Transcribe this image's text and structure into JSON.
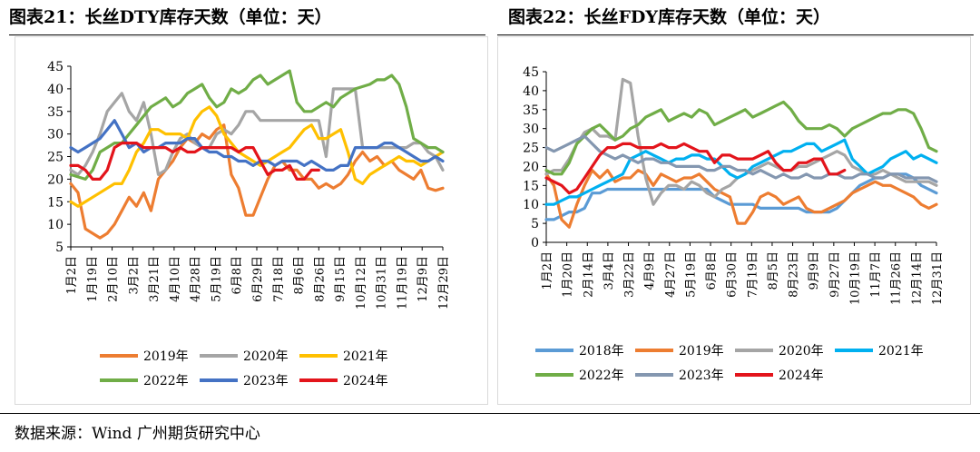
{
  "charts": [
    {
      "title": "图表21：长丝DTY库存天数（单位：天）",
      "chart_data": {
        "type": "line",
        "title": "图表21：长丝DTY库存天数（单位：天）",
        "ylim": [
          5,
          45
        ],
        "yticks": [
          5,
          10,
          15,
          20,
          25,
          30,
          35,
          40,
          45
        ],
        "x_labels": [
          "1月2日",
          "1月19日",
          "2月10日",
          "3月2日",
          "3月21日",
          "4月10日",
          "4月28日",
          "5月19日",
          "6月8日",
          "6月29日",
          "7月18日",
          "8月6日",
          "8月26日",
          "9月15日",
          "10月12日",
          "10月31日",
          "11月19日",
          "12月9日",
          "12月29日"
        ],
        "n_points": 52,
        "legend": "bottom",
        "series": [
          {
            "name": "2019年",
            "color": "#ED7D31",
            "values": [
              19,
              17,
              9,
              8,
              7,
              8,
              10,
              13,
              16,
              14,
              17,
              13,
              20,
              22,
              24,
              27,
              29,
              28,
              30,
              29,
              31,
              32,
              21,
              18,
              12,
              12,
              16,
              20,
              23,
              24,
              22,
              22,
              20,
              20,
              18,
              19,
              18,
              19,
              21,
              24,
              26,
              24,
              25,
              23,
              24,
              22,
              21,
              20,
              22,
              18,
              17.5,
              18
            ]
          },
          {
            "name": "2020年",
            "color": "#A5A5A5",
            "values": [
              22,
              21,
              23,
              26,
              30,
              35,
              37,
              39,
              35,
              33,
              37,
              30,
              21,
              22,
              26,
              29,
              30,
              28,
              27,
              27,
              30,
              31,
              30,
              32,
              35,
              35,
              33,
              33,
              33,
              33,
              33,
              33,
              33,
              33,
              33,
              25,
              40,
              40,
              40,
              40,
              27,
              27,
              27,
              27,
              27,
              27,
              27,
              28,
              28,
              26,
              25,
              22
            ]
          },
          {
            "name": "2021年",
            "color": "#FFC000",
            "values": [
              15,
              14,
              15,
              16,
              17,
              18,
              19,
              19,
              22,
              26,
              28,
              31,
              31,
              30,
              30,
              30,
              29,
              33,
              35,
              36,
              34,
              30,
              28,
              26,
              25,
              24,
              23,
              24,
              25,
              26,
              27,
              29,
              31,
              32,
              29,
              29,
              30,
              31,
              26,
              20,
              19,
              21,
              22,
              23,
              24,
              25,
              24,
              24,
              23,
              24,
              25,
              26
            ]
          },
          {
            "name": "2022年",
            "color": "#70AD47",
            "values": [
              21,
              20.5,
              20,
              22,
              26,
              27,
              28,
              28,
              30,
              32,
              34,
              36,
              37,
              38,
              36,
              37,
              39,
              40,
              41,
              38,
              36,
              37,
              40,
              39,
              40,
              42,
              43,
              41,
              42,
              43,
              44,
              37,
              35,
              35,
              36,
              37,
              36,
              38,
              39,
              40,
              40.5,
              41,
              42,
              42,
              43,
              41,
              36,
              29,
              28,
              27,
              27,
              26
            ]
          },
          {
            "name": "2023年",
            "color": "#4472C4",
            "values": [
              27,
              26,
              27,
              28,
              29,
              31,
              33,
              30,
              27,
              28,
              26,
              27,
              27,
              28,
              28,
              28,
              29,
              29,
              27,
              26,
              26,
              25,
              25,
              24,
              24,
              23,
              24,
              24,
              23,
              24,
              24,
              24,
              23,
              24,
              23,
              22,
              22,
              23,
              23,
              27,
              27,
              27,
              27,
              28,
              28,
              27,
              26,
              25,
              24,
              24,
              25,
              24
            ]
          },
          {
            "name": "2024年",
            "color": "#E3141B",
            "values": [
              23,
              23,
              22,
              20,
              20,
              22,
              27,
              28,
              28,
              28,
              27,
              27,
              27,
              27,
              26,
              27,
              26,
              26,
              27,
              27,
              27,
              27,
              27,
              26,
              27,
              27,
              24,
              21,
              22,
              22,
              23,
              20,
              20,
              22,
              22,
              null,
              null,
              null,
              null,
              null,
              null,
              null,
              null,
              null,
              null,
              null,
              null,
              null,
              null,
              null,
              null,
              null
            ]
          }
        ]
      }
    },
    {
      "title": "图表22：长丝FDY库存天数（单位：天）",
      "chart_data": {
        "type": "line",
        "title": "图表22：长丝FDY库存天数（单位：天）",
        "ylim": [
          0,
          45
        ],
        "yticks": [
          0,
          5,
          10,
          15,
          20,
          25,
          30,
          35,
          40,
          45
        ],
        "x_labels": [
          "1月2日",
          "1月20日",
          "2月14日",
          "3月4日",
          "3月22日",
          "4月9日",
          "4月27日",
          "5月19日",
          "6月8日",
          "6月30日",
          "7月19日",
          "8月5日",
          "8月23日",
          "9月9日",
          "9月27日",
          "10月19日",
          "11月7日",
          "11月26日",
          "12月14日",
          "12月31日"
        ],
        "n_points": 52,
        "legend": "bottom",
        "series": [
          {
            "name": "2018年",
            "color": "#5B9BD5",
            "values": [
              6,
              6,
              7,
              8,
              8,
              9,
              13,
              13,
              14,
              14,
              14,
              14,
              14,
              14,
              14,
              14,
              14,
              14,
              14,
              14,
              14,
              14,
              12,
              11,
              10,
              10,
              10,
              10,
              9,
              9,
              9,
              9,
              9,
              9,
              8,
              8,
              8,
              8,
              9,
              11,
              13,
              15,
              16,
              17,
              17,
              18,
              18,
              18,
              17,
              15,
              14,
              13
            ]
          },
          {
            "name": "2019年",
            "color": "#ED7D31",
            "values": [
              18,
              15,
              6,
              4,
              10,
              15,
              19,
              17,
              19,
              16,
              17,
              17,
              19,
              18,
              15,
              18,
              17,
              16,
              17,
              17,
              18,
              16,
              14,
              13,
              12,
              5,
              5,
              8,
              12,
              13,
              12,
              10,
              11,
              12,
              9,
              8,
              8,
              9,
              10,
              11,
              13,
              14,
              15,
              16,
              15,
              15,
              14,
              13,
              12,
              10,
              9,
              10
            ]
          },
          {
            "name": "2020年",
            "color": "#A5A5A5",
            "values": [
              18,
              19,
              19,
              22,
              26,
              29,
              30,
              28,
              28,
              27,
              43,
              42,
              28,
              17,
              10,
              13,
              15,
              15,
              14,
              16,
              15,
              13,
              12,
              14,
              15,
              17,
              18,
              19,
              20,
              21,
              20,
              19,
              19,
              20,
              20,
              21,
              22,
              23,
              24,
              23,
              20,
              19,
              18,
              18,
              19,
              18,
              17,
              16,
              16,
              16,
              16,
              15
            ]
          },
          {
            "name": "2021年",
            "color": "#00B0F0",
            "values": [
              10,
              10,
              11,
              12,
              12,
              13,
              14,
              15,
              16,
              17,
              18,
              22,
              23,
              24,
              23,
              22,
              21,
              22,
              22,
              23,
              23,
              22,
              22,
              20,
              18,
              17,
              18,
              20,
              21,
              22,
              23,
              24,
              24,
              25,
              26,
              26,
              24,
              25,
              26,
              27,
              22,
              20,
              18,
              19,
              20,
              22,
              23,
              24,
              22,
              23,
              22,
              21
            ]
          },
          {
            "name": "2022年",
            "color": "#70AD47",
            "values": [
              19,
              18,
              18,
              21,
              26,
              28,
              30,
              31,
              29,
              27,
              28,
              30,
              31,
              33,
              34,
              35,
              32,
              33,
              34,
              33,
              35,
              34,
              31,
              32,
              33,
              34,
              35,
              33,
              34,
              35,
              36,
              37,
              35,
              32,
              30,
              30,
              30,
              31,
              30,
              28,
              30,
              31,
              32,
              33,
              34,
              34,
              35,
              35,
              34,
              30,
              25,
              24
            ]
          },
          {
            "name": "2023年",
            "color": "#8497B0",
            "values": [
              25,
              24,
              25,
              26,
              27,
              28,
              26,
              24,
              23,
              22,
              23,
              22,
              21,
              22,
              22,
              21,
              21,
              20,
              20,
              20,
              20,
              19,
              19,
              20,
              20,
              19,
              19,
              18,
              19,
              18,
              17,
              18,
              17,
              17,
              18,
              17,
              17,
              18,
              18,
              17,
              17,
              18,
              18,
              17,
              17,
              18,
              18,
              17,
              17,
              17,
              17,
              16
            ]
          },
          {
            "name": "2024年",
            "color": "#E3141B",
            "values": [
              17,
              16,
              15,
              13,
              14,
              17,
              20,
              23,
              25,
              25,
              26,
              26,
              25,
              25,
              25,
              26,
              25,
              25,
              26,
              25,
              24,
              24,
              21,
              23,
              23,
              22,
              22,
              22,
              23,
              24,
              21,
              19,
              19,
              21,
              21,
              22,
              22,
              18,
              18,
              19,
              null,
              null,
              null,
              null,
              null,
              null,
              null,
              null,
              null,
              null,
              null,
              null
            ]
          }
        ]
      }
    }
  ],
  "source": "数据来源：Wind  广州期货研究中心"
}
